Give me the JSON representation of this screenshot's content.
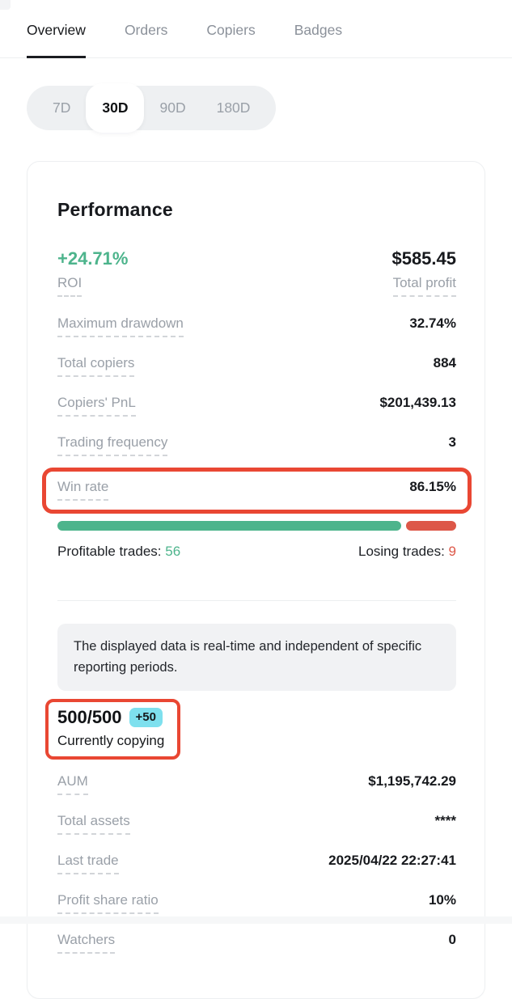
{
  "tabs": {
    "items": [
      {
        "label": "Overview",
        "active": true
      },
      {
        "label": "Orders",
        "active": false
      },
      {
        "label": "Copiers",
        "active": false
      },
      {
        "label": "Badges",
        "active": false
      }
    ]
  },
  "periods": {
    "items": [
      {
        "label": "7D",
        "selected": false
      },
      {
        "label": "30D",
        "selected": true
      },
      {
        "label": "90D",
        "selected": false
      },
      {
        "label": "180D",
        "selected": false
      }
    ]
  },
  "card": {
    "title": "Performance",
    "hero": {
      "roi_value": "+24.71%",
      "roi_label": "ROI",
      "profit_value": "$585.45",
      "profit_label": "Total profit"
    },
    "stats": [
      {
        "label": "Maximum drawdown",
        "value": "32.74%"
      },
      {
        "label": "Total copiers",
        "value": "884"
      },
      {
        "label": "Copiers' PnL",
        "value": "$201,439.13"
      },
      {
        "label": "Trading frequency",
        "value": "3"
      },
      {
        "label": "Win rate",
        "value": "86.15%",
        "highlighted": true
      }
    ],
    "win_bar": {
      "green_pct": 86.15,
      "red_pct": 13.85
    },
    "trades": {
      "profitable_label": "Profitable trades:",
      "profitable_value": "56",
      "losing_label": "Losing trades:",
      "losing_value": "9"
    },
    "notice": "The displayed data is real-time and independent of specific reporting periods.",
    "copying": {
      "value": "500/500",
      "badge": "+50",
      "label": "Currently copying",
      "highlighted": true
    },
    "details": [
      {
        "label": "AUM",
        "value": "$1,195,742.29"
      },
      {
        "label": "Total assets",
        "value": "****"
      },
      {
        "label": "Last trade",
        "value": "2025/04/22 22:27:41"
      },
      {
        "label": "Profit share ratio",
        "value": "10%"
      },
      {
        "label": "Watchers",
        "value": "0"
      }
    ]
  },
  "colors": {
    "green": "#4db48c",
    "red": "#dd5748",
    "annotation_red": "#e94733",
    "badge_cyan": "#7ee0ee"
  }
}
